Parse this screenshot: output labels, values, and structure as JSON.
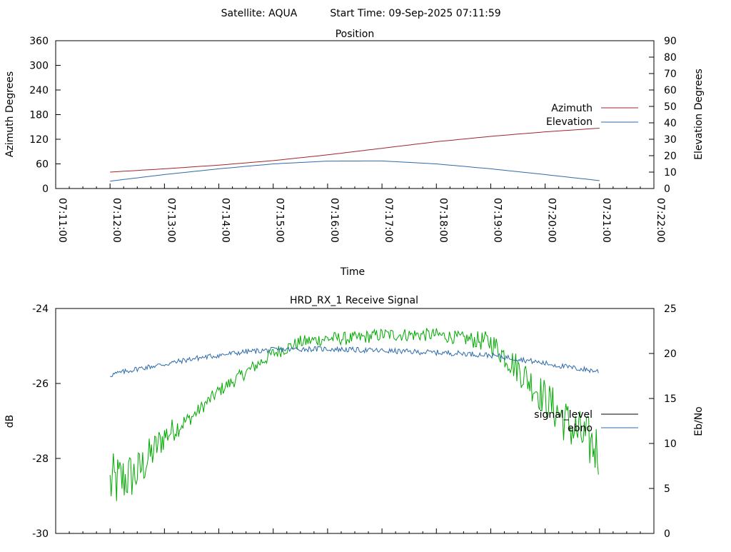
{
  "header": {
    "satellite_label": "Satellite: AQUA",
    "start_time_label": "Start Time: 09-Sep-2025 07:11:59"
  },
  "chart_data": [
    {
      "type": "line",
      "title": "Position",
      "xlabel": "Time",
      "ylabel": "Azimuth Degrees",
      "y2label": "Elevation Degrees",
      "x_ticks": [
        "07:11:00",
        "07:12:00",
        "07:13:00",
        "07:14:00",
        "07:15:00",
        "07:16:00",
        "07:17:00",
        "07:18:00",
        "07:19:00",
        "07:20:00",
        "07:21:00",
        "07:22:00"
      ],
      "xlim": [
        "07:11:00",
        "07:22:00"
      ],
      "ylim": [
        0,
        360
      ],
      "y_ticks": [
        0,
        60,
        120,
        180,
        240,
        300,
        360
      ],
      "y2lim": [
        0,
        90
      ],
      "y2_ticks": [
        0,
        10,
        20,
        30,
        40,
        50,
        60,
        70,
        80,
        90
      ],
      "legend_position": "right",
      "x": [
        "07:12:00",
        "07:13:00",
        "07:14:00",
        "07:15:00",
        "07:16:00",
        "07:17:00",
        "07:18:00",
        "07:19:00",
        "07:20:00",
        "07:21:00"
      ],
      "series": [
        {
          "name": "Azimuth",
          "axis": "left",
          "color": "#a0262e",
          "values": [
            40,
            48,
            57,
            68,
            82,
            98,
            114,
            127,
            138,
            147
          ]
        },
        {
          "name": "Elevation",
          "axis": "right",
          "color": "#2d6baa",
          "values": [
            4.5,
            8.5,
            12,
            15,
            16.7,
            16.8,
            15,
            12,
            8.5,
            4.8
          ]
        }
      ]
    },
    {
      "type": "line",
      "title": "HRD_RX_1 Receive Signal",
      "xlabel": "",
      "ylabel": "dB",
      "y2label": "Eb/No",
      "ylim": [
        -30,
        -24
      ],
      "y_ticks": [
        -30,
        -28,
        -26,
        -24
      ],
      "y2lim": [
        0,
        25
      ],
      "y2_ticks": [
        0,
        5,
        10,
        15,
        20,
        25
      ],
      "legend_position": "right",
      "x": [
        "07:12:00",
        "07:12:30",
        "07:13:00",
        "07:13:30",
        "07:14:00",
        "07:14:30",
        "07:15:00",
        "07:15:30",
        "07:16:00",
        "07:16:30",
        "07:17:00",
        "07:17:30",
        "07:18:00",
        "07:18:30",
        "07:19:00",
        "07:19:30",
        "07:20:00",
        "07:20:30",
        "07:21:00"
      ],
      "series": [
        {
          "name": "signal_level",
          "axis": "left",
          "color": "#00aa00",
          "values": [
            -28.7,
            -28.4,
            -27.4,
            -26.9,
            -26.2,
            -25.7,
            -25.2,
            -24.9,
            -24.8,
            -24.8,
            -24.7,
            -24.7,
            -24.7,
            -24.8,
            -24.9,
            -25.6,
            -26.4,
            -27.2,
            -27.8
          ]
        },
        {
          "name": "ebno",
          "axis": "right",
          "color": "#2d6baa",
          "values": [
            17.6,
            18.3,
            18.8,
            19.4,
            19.8,
            20.2,
            20.4,
            20.5,
            20.5,
            20.4,
            20.3,
            20.2,
            20.1,
            20.0,
            19.8,
            19.4,
            18.9,
            18.4,
            18.0
          ]
        }
      ]
    }
  ]
}
